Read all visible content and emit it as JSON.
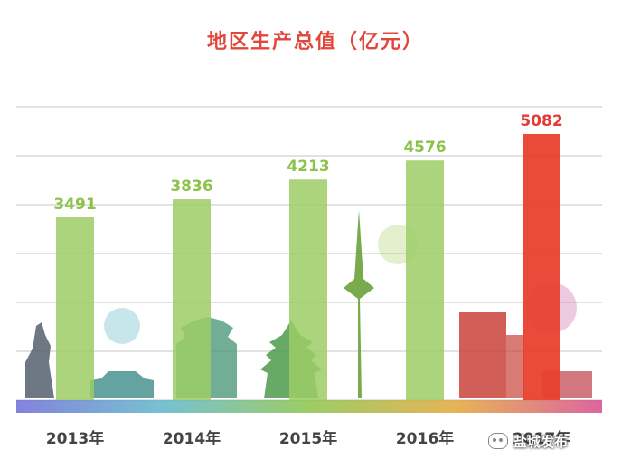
{
  "chart_data": {
    "type": "bar",
    "title": "地区生产总值（亿元）",
    "categories": [
      "2013年",
      "2014年",
      "2015年",
      "2016年",
      "2017年"
    ],
    "values": [
      3491,
      3836,
      4213,
      4576,
      5082
    ],
    "ylim": [
      0,
      5600
    ],
    "grid": true,
    "xlabel": "",
    "ylabel": "",
    "colors": {
      "bar_default": "#9ccc65",
      "bar_highlight": "#e8402f",
      "label_default": "#8bc34a",
      "label_highlight": "#e53935",
      "grid": "#d9d9d9"
    },
    "highlight_index": 4
  },
  "watermark": {
    "text": "盐城发布",
    "icon": "wechat-logo-icon"
  }
}
